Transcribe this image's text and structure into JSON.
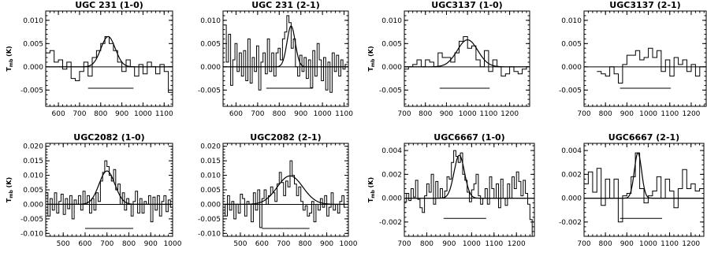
{
  "chart_data": [
    {
      "type": "line",
      "title": "UGC 231 (1-0)",
      "ylabel": "T$_{mb}$ (K)",
      "ylabel_text": "T",
      "ylabel_sub": "mb",
      "ylabel_unit": " (K)",
      "xlim": [
        540,
        1140
      ],
      "ylim": [
        -0.0085,
        0.012
      ],
      "xticks": [
        600,
        700,
        800,
        900,
        1000,
        1100
      ],
      "yticks": [
        -0.005,
        0.0,
        0.005,
        0.01
      ],
      "ytick_labels": [
        "-0.005",
        "0.000",
        "0.005",
        "0.010"
      ],
      "channel_width": 20,
      "spectrum": {
        "x": [
          550,
          570,
          590,
          610,
          630,
          650,
          670,
          690,
          710,
          730,
          750,
          770,
          790,
          810,
          830,
          850,
          870,
          890,
          910,
          930,
          950,
          970,
          990,
          1010,
          1030,
          1050,
          1070,
          1090,
          1110,
          1130
        ],
        "y": [
          0.003,
          0.0035,
          0.001,
          0.0015,
          -0.0005,
          0.001,
          -0.0025,
          -0.003,
          -0.001,
          0.001,
          -0.002,
          0.002,
          0.0035,
          0.005,
          0.0065,
          0.005,
          0.0035,
          0.001,
          -0.001,
          0.0015,
          0.0,
          -0.002,
          0.0005,
          -0.0015,
          0.001,
          0.0,
          -0.0015,
          0.0005,
          -0.001,
          -0.0055
        ]
      },
      "fit": {
        "amp": 0.0065,
        "center": 835,
        "fwhm": 80
      },
      "velocity_range": [
        740,
        955
      ],
      "bar_level": -0.0046
    },
    {
      "type": "line",
      "title": "UGC 231 (2-1)",
      "ylabel": "",
      "xlim": [
        540,
        1120
      ],
      "ylim": [
        -0.0085,
        0.012
      ],
      "xticks": [
        600,
        700,
        800,
        900,
        1000,
        1100
      ],
      "yticks": [
        -0.005,
        0.0,
        0.005,
        0.01
      ],
      "ytick_labels": [
        "-0.005",
        "0.000",
        "0.005",
        "0.010"
      ],
      "channel_width": 10,
      "spectrum": {
        "x": [
          550,
          560,
          570,
          580,
          590,
          600,
          610,
          620,
          630,
          640,
          650,
          660,
          670,
          680,
          690,
          700,
          710,
          720,
          730,
          740,
          750,
          760,
          770,
          780,
          790,
          800,
          810,
          820,
          830,
          840,
          850,
          860,
          870,
          880,
          890,
          900,
          910,
          920,
          930,
          940,
          950,
          960,
          970,
          980,
          990,
          1000,
          1010,
          1020,
          1030,
          1040,
          1050,
          1060,
          1070,
          1080,
          1090,
          1100,
          1110
        ],
        "y": [
          0.009,
          0.001,
          0.007,
          -0.004,
          0.0015,
          0.005,
          -0.001,
          0.003,
          -0.002,
          0.0035,
          -0.003,
          0.006,
          -0.0035,
          0.002,
          -0.001,
          0.0045,
          -0.005,
          0.001,
          0.003,
          -0.0015,
          0.006,
          -0.001,
          0.003,
          -0.002,
          0.003,
          0.004,
          0.0015,
          0.006,
          0.0075,
          0.011,
          0.0095,
          0.004,
          0.006,
          0.0,
          -0.002,
          0.0025,
          -0.001,
          0.002,
          -0.0025,
          0.0015,
          -0.0045,
          0.0035,
          -0.002,
          0.005,
          0.0015,
          -0.003,
          0.002,
          -0.005,
          0.001,
          -0.0055,
          0.003,
          -0.001,
          0.0025,
          -0.002,
          0.0015,
          -0.0005,
          0.0005
        ]
      },
      "fit": {
        "amp": 0.0088,
        "center": 855,
        "fwhm": 45
      },
      "velocity_range": [
        740,
        955
      ],
      "bar_level": -0.0046
    },
    {
      "type": "line",
      "title": "UGC3137 (1-0)",
      "ylabel": "T$_{mb}$ (K)",
      "ylabel_text": "T",
      "ylabel_sub": "mb",
      "ylabel_unit": " (K)",
      "xlim": [
        700,
        1295
      ],
      "ylim": [
        -0.0085,
        0.012
      ],
      "xticks": [
        700,
        800,
        900,
        1000,
        1100,
        1200
      ],
      "yticks": [
        -0.005,
        0.0,
        0.005,
        0.01
      ],
      "ytick_labels": [
        "-0.005",
        "0.000",
        "0.005",
        "0.010"
      ],
      "channel_width": 20,
      "spectrum": {
        "x": [
          710,
          730,
          750,
          770,
          790,
          810,
          830,
          850,
          870,
          890,
          910,
          930,
          950,
          970,
          990,
          1010,
          1030,
          1050,
          1070,
          1090,
          1110,
          1130,
          1150,
          1170,
          1190,
          1210,
          1230,
          1250,
          1270,
          1290
        ],
        "y": [
          -0.0005,
          0.0,
          0.0005,
          0.0015,
          0.0,
          0.0015,
          0.001,
          0.0,
          0.003,
          0.002,
          0.002,
          0.001,
          0.003,
          0.0055,
          0.0065,
          0.004,
          0.0045,
          0.0015,
          0.0,
          0.0035,
          -0.001,
          0.0015,
          0.0,
          -0.002,
          -0.0015,
          0.0,
          -0.001,
          -0.0015,
          -0.0005,
          0.0
        ]
      },
      "fit": {
        "amp": 0.0058,
        "center": 1000,
        "fwhm": 115
      },
      "velocity_range": [
        868,
        1105
      ],
      "bar_level": -0.0046
    },
    {
      "type": "line",
      "title": "UGC3137 (2-1)",
      "ylabel": "",
      "xlim": [
        700,
        1270
      ],
      "ylim": [
        -0.0085,
        0.012
      ],
      "xticks": [
        700,
        800,
        900,
        1000,
        1100,
        1200
      ],
      "yticks": [
        -0.005,
        0.0,
        0.005,
        0.01
      ],
      "ytick_labels": [
        "-0.005",
        "0.000",
        "0.005",
        "0.010"
      ],
      "channel_width": 20,
      "spectrum": {
        "x": [
          770,
          790,
          810,
          830,
          850,
          870,
          890,
          910,
          930,
          950,
          970,
          990,
          1010,
          1030,
          1050,
          1070,
          1090,
          1110,
          1130,
          1150,
          1170,
          1190,
          1210,
          1230,
          1250
        ],
        "y": [
          -0.001,
          -0.0015,
          -0.002,
          0.0,
          -0.0015,
          -0.0035,
          0.0005,
          0.0025,
          0.0025,
          0.0035,
          0.0015,
          0.002,
          0.004,
          0.002,
          0.0035,
          -0.001,
          0.0015,
          -0.002,
          0.002,
          0.0005,
          0.0015,
          -0.001,
          0.0005,
          -0.002,
          0.0
        ]
      },
      "fit": null,
      "velocity_range": [
        868,
        1105
      ],
      "bar_level": -0.0046
    },
    {
      "type": "line",
      "title": "UGC2082 (1-0)",
      "ylabel": "T$_{mb}$ (K)",
      "ylabel_text": "T",
      "ylabel_sub": "mb",
      "ylabel_unit": " (K)",
      "xlim": [
        420,
        1000
      ],
      "ylim": [
        -0.011,
        0.021
      ],
      "xticks": [
        500,
        600,
        700,
        800,
        900,
        1000
      ],
      "yticks": [
        -0.01,
        -0.005,
        0.0,
        0.005,
        0.01,
        0.015,
        0.02
      ],
      "ytick_labels": [
        "-0.010",
        "-0.005",
        "0.000",
        "0.005",
        "0.010",
        "0.015",
        "0.020"
      ],
      "channel_width": 10,
      "spectrum": {
        "x": [
          425,
          435,
          445,
          455,
          465,
          475,
          485,
          495,
          505,
          515,
          525,
          535,
          545,
          555,
          565,
          575,
          585,
          595,
          605,
          615,
          625,
          635,
          645,
          655,
          665,
          675,
          685,
          695,
          705,
          715,
          725,
          735,
          745,
          755,
          765,
          775,
          785,
          795,
          805,
          815,
          825,
          835,
          845,
          855,
          865,
          875,
          885,
          895,
          905,
          915,
          925,
          935,
          945,
          955,
          965,
          975,
          985,
          995
        ],
        "y": [
          0.004,
          -0.004,
          0.002,
          -0.002,
          0.004,
          -0.003,
          0.001,
          0.0035,
          -0.0035,
          0.002,
          -0.0015,
          0.003,
          -0.005,
          0.0015,
          0.0,
          0.003,
          -0.002,
          0.0045,
          0.0,
          0.003,
          -0.003,
          0.002,
          -0.002,
          0.004,
          0.001,
          0.008,
          0.011,
          0.015,
          0.013,
          0.01,
          0.008,
          0.012,
          0.005,
          0.007,
          0.0,
          0.004,
          -0.002,
          0.002,
          0.0,
          -0.004,
          0.001,
          0.0045,
          -0.003,
          0.002,
          -0.003,
          0.001,
          0.0,
          0.003,
          -0.006,
          0.0025,
          -0.002,
          0.003,
          -0.004,
          0.001,
          0.003,
          -0.0025,
          0.0015,
          -0.001
        ]
      },
      "fit": {
        "amp": 0.0115,
        "center": 700,
        "fwhm": 85
      },
      "velocity_range": [
        600,
        820
      ],
      "bar_level": -0.0083
    },
    {
      "type": "line",
      "title": "UGC2082 (2-1)",
      "ylabel": "",
      "xlim": [
        420,
        1000
      ],
      "ylim": [
        -0.011,
        0.021
      ],
      "xticks": [
        500,
        600,
        700,
        800,
        900,
        1000
      ],
      "yticks": [
        -0.01,
        -0.005,
        0.0,
        0.005,
        0.01,
        0.015,
        0.02
      ],
      "ytick_labels": [
        "-0.010",
        "-0.005",
        "0.000",
        "0.005",
        "0.010",
        "0.015",
        "0.020"
      ],
      "channel_width": 10,
      "spectrum": {
        "x": [
          425,
          435,
          445,
          455,
          465,
          475,
          485,
          495,
          505,
          515,
          525,
          535,
          545,
          555,
          565,
          575,
          585,
          595,
          605,
          615,
          625,
          635,
          645,
          655,
          665,
          675,
          685,
          695,
          705,
          715,
          725,
          735,
          745,
          755,
          765,
          775,
          785,
          795,
          805,
          815,
          825,
          835,
          845,
          855,
          865,
          875,
          885,
          895,
          905,
          915,
          925,
          935,
          945,
          955,
          965,
          975,
          985
        ],
        "y": [
          0.0,
          -0.004,
          0.003,
          -0.002,
          0.001,
          -0.005,
          0.0,
          -0.003,
          0.0035,
          0.002,
          -0.004,
          0.001,
          0.0,
          -0.006,
          0.004,
          -0.002,
          0.005,
          -0.008,
          0.002,
          0.005,
          0.0,
          0.003,
          0.006,
          0.004,
          0.001,
          0.007,
          0.011,
          0.0075,
          0.003,
          0.008,
          0.006,
          0.015,
          0.01,
          0.007,
          0.003,
          0.006,
          0.001,
          -0.002,
          -0.0005,
          -0.004,
          -0.003,
          0.001,
          -0.006,
          0.0,
          -0.002,
          0.002,
          -0.001,
          0.003,
          -0.004,
          -0.001,
          0.004,
          -0.002,
          0.0,
          -0.003,
          0.001,
          0.003,
          -0.001
        ]
      },
      "fit": {
        "amp": 0.0098,
        "center": 730,
        "fwhm": 140
      },
      "velocity_range": [
        600,
        820
      ],
      "bar_level": -0.0083
    },
    {
      "type": "line",
      "title": "UGC6667 (1-0)",
      "ylabel": "T$_{mb}$ (K)",
      "ylabel_text": "T",
      "ylabel_sub": "mb",
      "ylabel_unit": " (K)",
      "xlim": [
        700,
        1280
      ],
      "ylim": [
        -0.0032,
        0.0046
      ],
      "xticks": [
        700,
        800,
        900,
        1000,
        1100,
        1200
      ],
      "yticks": [
        -0.002,
        0.0,
        0.002,
        0.004
      ],
      "ytick_labels": [
        "-0.002",
        "0.000",
        "0.002",
        "0.004"
      ],
      "channel_width": 10,
      "spectrum": {
        "x": [
          705,
          715,
          725,
          735,
          745,
          755,
          765,
          775,
          785,
          795,
          805,
          815,
          825,
          835,
          845,
          855,
          865,
          875,
          885,
          895,
          905,
          915,
          925,
          935,
          945,
          955,
          965,
          975,
          985,
          995,
          1005,
          1015,
          1025,
          1035,
          1045,
          1055,
          1065,
          1075,
          1085,
          1095,
          1105,
          1115,
          1125,
          1135,
          1145,
          1155,
          1165,
          1175,
          1185,
          1195,
          1205,
          1215,
          1225,
          1235,
          1245,
          1255,
          1265,
          1275
        ],
        "y": [
          -0.0003,
          0.0004,
          -0.0002,
          0.0008,
          0.0001,
          0.0015,
          -0.0001,
          -0.0008,
          -0.0012,
          0.0002,
          0.0012,
          0.0005,
          0.002,
          -0.0005,
          0.0014,
          0.0,
          0.0008,
          0.0,
          0.0006,
          0.0018,
          0.0016,
          0.003,
          0.004,
          0.0035,
          0.003,
          0.0038,
          0.002,
          0.0015,
          0.0005,
          -0.0003,
          0.0007,
          0.0012,
          0.002,
          0.0002,
          -0.0005,
          0.0,
          0.0008,
          -0.0005,
          0.0018,
          0.0008,
          0.0,
          0.0012,
          -0.0008,
          0.0016,
          0.0,
          -0.0006,
          0.0012,
          0.0,
          0.0018,
          0.0008,
          0.0022,
          0.0014,
          0.0002,
          0.0015,
          0.0004,
          -0.0005,
          -0.0018,
          -0.0035
        ]
      },
      "fit": {
        "amp": 0.0036,
        "center": 945,
        "fwhm": 55
      },
      "velocity_range": [
        875,
        1065
      ],
      "bar_level": -0.0017
    },
    {
      "type": "line",
      "title": "UGC6667 (2-1)",
      "ylabel": "",
      "xlim": [
        700,
        1260
      ],
      "ylim": [
        -0.0032,
        0.0046
      ],
      "xticks": [
        700,
        800,
        900,
        1000,
        1100,
        1200
      ],
      "yticks": [
        -0.002,
        0.0,
        0.002,
        0.004
      ],
      "ytick_labels": [
        "-0.002",
        "0.000",
        "0.002",
        "0.004"
      ],
      "channel_width": 20,
      "spectrum": {
        "x": [
          710,
          730,
          750,
          770,
          790,
          810,
          830,
          850,
          870,
          890,
          910,
          930,
          950,
          970,
          990,
          1010,
          1030,
          1050,
          1070,
          1090,
          1110,
          1130,
          1150,
          1170,
          1190,
          1210,
          1230,
          1250
        ],
        "y": [
          0.0012,
          0.0022,
          0.0005,
          0.0025,
          -0.0006,
          0.0016,
          0.0,
          0.0016,
          -0.002,
          0.0002,
          0.0004,
          0.0018,
          0.0038,
          0.0008,
          -0.0004,
          0.0002,
          0.0006,
          0.0018,
          0.0,
          0.0016,
          0.0006,
          -0.0008,
          0.0008,
          0.0024,
          0.0008,
          0.0012,
          0.0006,
          0.0008
        ]
      },
      "fit": {
        "amp": 0.0038,
        "center": 952,
        "fwhm": 40
      },
      "velocity_range": [
        868,
        1065
      ],
      "bar_level": -0.0017
    }
  ]
}
